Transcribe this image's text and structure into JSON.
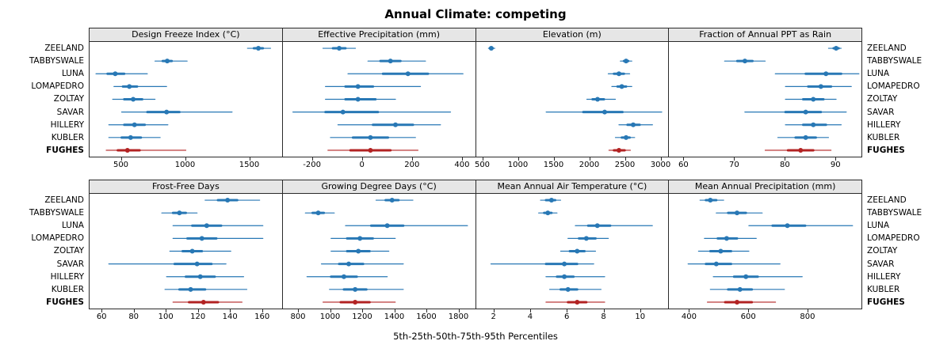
{
  "title": "Annual Climate: competing",
  "caption": "5th-25th-50th-75th-95th Percentiles",
  "stations": [
    "ZEELAND",
    "TABBYSWALE",
    "LUNA",
    "LOMAPEDRO",
    "ZOLTAY",
    "SAVAR",
    "HILLERY",
    "KUBLER",
    "FUGHES"
  ],
  "highlight_station": "FUGHES",
  "colors": {
    "series": "#2878b5",
    "highlight": "#b22222",
    "strip_bg": "#e6e6e6",
    "border": "#2a2a2a"
  },
  "chart_data": {
    "type": "scatter",
    "subtype": "dotplot-percentile-intervals",
    "percentiles": [
      5,
      25,
      50,
      75,
      95
    ],
    "layout": {
      "rows": 2,
      "cols": 4,
      "grid": false,
      "legend": "none"
    },
    "panels": [
      {
        "title": "Design Freeze Index (°C)",
        "xlim": [
          250,
          1750
        ],
        "ticks": [
          500,
          1000,
          1500
        ],
        "rows": [
          [
            1480,
            1530,
            1565,
            1600,
            1660
          ],
          [
            760,
            820,
            855,
            890,
            1010
          ],
          [
            300,
            390,
            450,
            520,
            700
          ],
          [
            440,
            510,
            560,
            620,
            850
          ],
          [
            430,
            520,
            590,
            660,
            760
          ],
          [
            500,
            700,
            850,
            950,
            1360
          ],
          [
            400,
            520,
            600,
            680,
            860
          ],
          [
            400,
            500,
            570,
            650,
            800
          ],
          [
            380,
            470,
            545,
            640,
            1000
          ]
        ]
      },
      {
        "title": "Effective Precipitation (mm)",
        "xlim": [
          -320,
          450
        ],
        "ticks": [
          -200,
          0,
          200,
          400
        ],
        "rows": [
          [
            -160,
            -120,
            -95,
            -70,
            -30
          ],
          [
            20,
            70,
            110,
            150,
            250
          ],
          [
            -60,
            80,
            180,
            260,
            400
          ],
          [
            -150,
            -70,
            -20,
            40,
            230
          ],
          [
            -150,
            -70,
            -20,
            50,
            130
          ],
          [
            -280,
            -150,
            -80,
            60,
            350
          ],
          [
            -100,
            40,
            130,
            200,
            310
          ],
          [
            -130,
            -40,
            30,
            100,
            210
          ],
          [
            -140,
            -50,
            30,
            110,
            220
          ]
        ]
      },
      {
        "title": "Elevation (m)",
        "xlim": [
          400,
          3100
        ],
        "ticks": [
          500,
          1000,
          1500,
          2000,
          2500,
          3000
        ],
        "rows": [
          [
            570,
            590,
            610,
            630,
            660
          ],
          [
            2420,
            2470,
            2500,
            2530,
            2580
          ],
          [
            2250,
            2330,
            2400,
            2470,
            2550
          ],
          [
            2300,
            2380,
            2440,
            2500,
            2580
          ],
          [
            1950,
            2030,
            2100,
            2190,
            2350
          ],
          [
            1380,
            1900,
            2200,
            2450,
            3000
          ],
          [
            2400,
            2520,
            2600,
            2690,
            2870
          ],
          [
            2350,
            2440,
            2500,
            2550,
            2620
          ],
          [
            2260,
            2330,
            2400,
            2480,
            2560
          ]
        ]
      },
      {
        "title": "Fraction of Annual PPT as Rain",
        "xlim": [
          57,
          95
        ],
        "ticks": [
          60,
          70,
          80,
          90
        ],
        "rows": [
          [
            88.5,
            89.5,
            90,
            90.5,
            91
          ],
          [
            68,
            70.5,
            72,
            73.5,
            76
          ],
          [
            78,
            84,
            88,
            91,
            94.5
          ],
          [
            80,
            84.5,
            87,
            89,
            93
          ],
          [
            80,
            83.5,
            85.5,
            87.5,
            90
          ],
          [
            72,
            80,
            84,
            87,
            92
          ],
          [
            80,
            83.5,
            85.5,
            88,
            91
          ],
          [
            78.5,
            82,
            84,
            86,
            88.5
          ],
          [
            76,
            80.5,
            83,
            85.5,
            89
          ]
        ]
      },
      {
        "title": "Frost-Free Days",
        "xlim": [
          52,
          172
        ],
        "ticks": [
          60,
          80,
          100,
          120,
          140,
          160
        ],
        "rows": [
          [
            124,
            132,
            138,
            144,
            158
          ],
          [
            97,
            104,
            108,
            112,
            119
          ],
          [
            104,
            116,
            125,
            134,
            160
          ],
          [
            104,
            113,
            122,
            131,
            160
          ],
          [
            102,
            110,
            116,
            122,
            140
          ],
          [
            64,
            105,
            119,
            128,
            137
          ],
          [
            100,
            112,
            121,
            130,
            148
          ],
          [
            99,
            108,
            115,
            124,
            150
          ],
          [
            104,
            114,
            123,
            132,
            147
          ]
        ]
      },
      {
        "title": "Growing Degree Days (°C)",
        "xlim": [
          700,
          1900
        ],
        "ticks": [
          800,
          1000,
          1200,
          1400,
          1600,
          1800
        ],
        "rows": [
          [
            1280,
            1340,
            1380,
            1420,
            1510
          ],
          [
            840,
            885,
            920,
            955,
            1020
          ],
          [
            1090,
            1250,
            1350,
            1450,
            1850
          ],
          [
            1000,
            1100,
            1180,
            1260,
            1400
          ],
          [
            1000,
            1100,
            1170,
            1240,
            1360
          ],
          [
            940,
            1050,
            1110,
            1200,
            1450
          ],
          [
            850,
            1000,
            1080,
            1160,
            1350
          ],
          [
            990,
            1080,
            1150,
            1220,
            1450
          ],
          [
            950,
            1060,
            1150,
            1240,
            1400
          ]
        ]
      },
      {
        "title": "Mean Annual Air Temperature (°C)",
        "xlim": [
          1,
          11.5
        ],
        "ticks": [
          2,
          4,
          6,
          8,
          10
        ],
        "rows": [
          [
            4.5,
            4.8,
            5.1,
            5.3,
            5.6
          ],
          [
            4.4,
            4.7,
            4.9,
            5.1,
            5.4
          ],
          [
            6.4,
            7.1,
            7.6,
            8.3,
            10.6
          ],
          [
            6.0,
            6.6,
            7.0,
            7.5,
            8.2
          ],
          [
            5.6,
            6.1,
            6.5,
            6.9,
            7.5
          ],
          [
            1.8,
            4.8,
            5.8,
            6.5,
            7.4
          ],
          [
            4.8,
            5.4,
            5.8,
            6.3,
            8.0
          ],
          [
            5.0,
            5.6,
            6.0,
            6.5,
            7.8
          ],
          [
            4.8,
            6.0,
            6.5,
            7.0,
            8.0
          ]
        ]
      },
      {
        "title": "Mean Annual Precipitation (mm)",
        "xlim": [
          330,
          980
        ],
        "ticks": [
          400,
          600,
          800
        ],
        "rows": [
          [
            435,
            455,
            470,
            490,
            515
          ],
          [
            490,
            530,
            560,
            590,
            645
          ],
          [
            600,
            680,
            730,
            790,
            950
          ],
          [
            450,
            495,
            525,
            560,
            625
          ],
          [
            430,
            470,
            505,
            540,
            600
          ],
          [
            395,
            455,
            490,
            540,
            705
          ],
          [
            480,
            550,
            590,
            630,
            780
          ],
          [
            470,
            530,
            570,
            610,
            720
          ],
          [
            460,
            520,
            560,
            610,
            690
          ]
        ]
      }
    ]
  }
}
